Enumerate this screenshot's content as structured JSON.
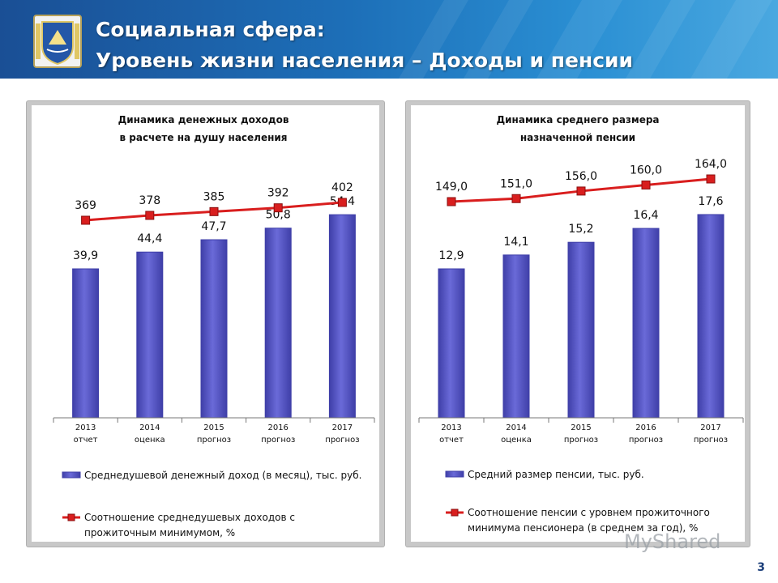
{
  "header": {
    "title_line1": "Социальная сфера:",
    "title_line2": "Уровень жизни населения – Доходы и пенсии"
  },
  "page_number": "3",
  "watermark": "MyShared",
  "colors": {
    "bar": "#6a6ad8",
    "bar_dark": "#3f3fa8",
    "line": "#d91e1e",
    "header_blue": "#1d6fb8"
  },
  "chart_data": [
    {
      "type": "bar",
      "title": "Динамика денежных доходов в расчете на душу населения",
      "title_lines": [
        "Динамика денежных доходов",
        "в расчете на душу населения"
      ],
      "categories": [
        [
          "2013",
          "отчет"
        ],
        [
          "2014",
          "оценка"
        ],
        [
          "2015",
          "прогноз"
        ],
        [
          "2016",
          "прогноз"
        ],
        [
          "2017",
          "прогноз"
        ]
      ],
      "series": [
        {
          "name": "Среднедушевой денежный доход (в месяц), тыс. руб.",
          "kind": "bar",
          "values": [
            39.9,
            44.4,
            47.7,
            50.8,
            54.4
          ],
          "labels": [
            "39,9",
            "44,4",
            "47,7",
            "50,8",
            "54,4"
          ]
        },
        {
          "name": "Соотношение среднедушевых доходов с прожиточным минимумом, %",
          "kind": "line",
          "values": [
            369,
            378,
            385,
            392,
            402
          ],
          "labels": [
            "369",
            "378",
            "385",
            "392",
            "402"
          ]
        }
      ],
      "legend": [
        {
          "kind": "bar",
          "lines": [
            "Среднедушевой денежный доход (в месяц), тыс. руб."
          ]
        },
        {
          "kind": "line",
          "lines": [
            "Соотношение среднедушевых доходов с",
            "прожиточным минимумом, %"
          ]
        }
      ],
      "legend_position": "bottom",
      "grid": false
    },
    {
      "type": "bar",
      "title": "Динамика среднего размера назначенной пенсии",
      "title_lines": [
        "Динамика среднего размера",
        "назначенной пенсии"
      ],
      "categories": [
        [
          "2013",
          "отчет"
        ],
        [
          "2014",
          "оценка"
        ],
        [
          "2015",
          "прогноз"
        ],
        [
          "2016",
          "прогноз"
        ],
        [
          "2017",
          "прогноз"
        ]
      ],
      "series": [
        {
          "name": "Средний размер пенсии, тыс. руб.",
          "kind": "bar",
          "values": [
            12.9,
            14.1,
            15.2,
            16.4,
            17.6
          ],
          "labels": [
            "12,9",
            "14,1",
            "15,2",
            "16,4",
            "17,6"
          ]
        },
        {
          "name": "Соотношение пенсии с уровнем прожиточного минимума пенсионера (в среднем за год), %",
          "kind": "line",
          "values": [
            149.0,
            151.0,
            156.0,
            160.0,
            164.0
          ],
          "labels": [
            "149,0",
            "151,0",
            "156,0",
            "160,0",
            "164,0"
          ]
        }
      ],
      "legend": [
        {
          "kind": "bar",
          "lines": [
            "Средний размер пенсии, тыс. руб."
          ]
        },
        {
          "kind": "line",
          "lines": [
            "Соотношение пенсии с уровнем прожиточного",
            "минимума пенсионера (в среднем за год), %"
          ]
        }
      ],
      "legend_position": "bottom",
      "grid": false
    }
  ]
}
